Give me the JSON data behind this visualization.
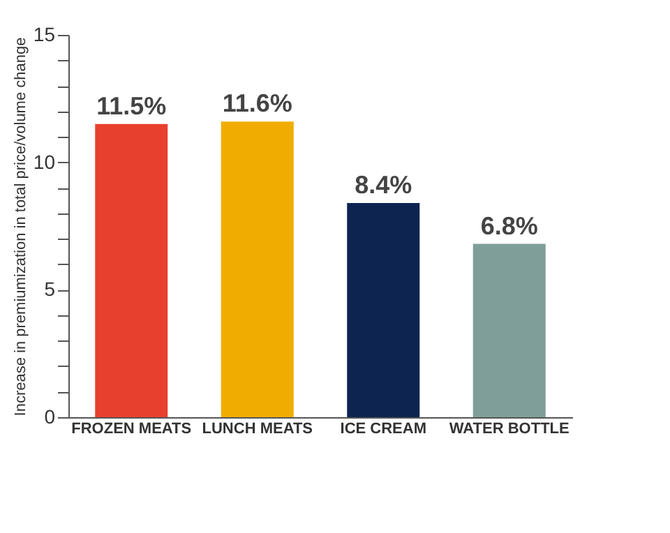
{
  "chart_data": {
    "type": "bar",
    "ylabel": "Increase in premiumization in total price/volume change",
    "categories": [
      "FROZEN MEATS",
      "LUNCH MEATS",
      "ICE CREAM",
      "WATER BOTTLE"
    ],
    "values": [
      11.5,
      11.6,
      8.4,
      6.8
    ],
    "colors": [
      "#e8402f",
      "#f0ad00",
      "#0d2451",
      "#7f9e9a"
    ],
    "value_labels": [
      "11.5%",
      "11.6%",
      "8.4%",
      "6.8%"
    ],
    "ylim": [
      0,
      15
    ],
    "yticks": [
      0,
      {
        "value": 1,
        "label": null
      },
      {
        "value": 2,
        "label": null
      },
      {
        "value": 3,
        "label": null
      },
      {
        "value": 4,
        "label": null
      },
      5,
      {
        "value": 6,
        "label": null
      },
      {
        "value": 7,
        "label": null
      },
      {
        "value": 8,
        "label": null
      },
      {
        "value": 9,
        "label": null
      },
      10,
      {
        "value": 11,
        "label": null
      },
      {
        "value": 12,
        "label": null
      },
      {
        "value": 13,
        "label": null
      },
      {
        "value": 14,
        "label": null
      },
      15
    ],
    "grid": false
  }
}
